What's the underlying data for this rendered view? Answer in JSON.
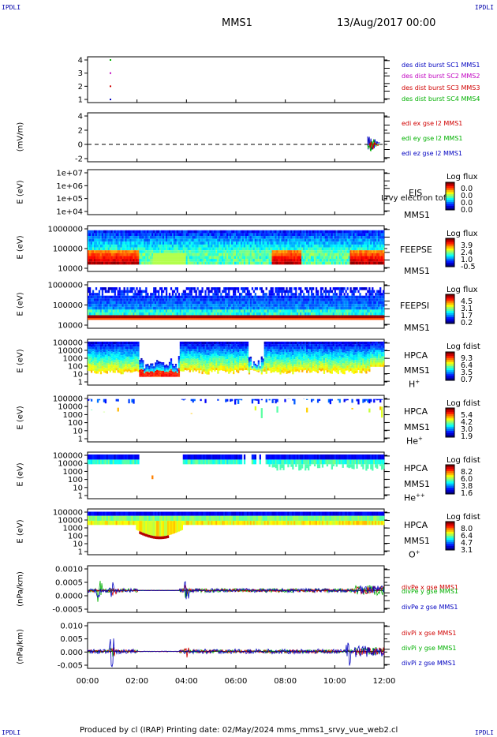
{
  "corners": {
    "tl": "IPDLI",
    "tr": "IPDLI",
    "bl": "IPDLI",
    "br": "IPDLI"
  },
  "header": {
    "mission": "MMS1",
    "date": "13/Aug/2017 00:00"
  },
  "footer": {
    "text": "Produced by cl (IRAP)   Printing date: 02/May/2024   mms_mms1_srvy_vue_web2.cl"
  },
  "chart_data": {
    "type": "line",
    "x_ticks": [
      "00:00",
      "02:00",
      "04:00",
      "06:00",
      "08:00",
      "10:00",
      "12:00"
    ],
    "xlim": [
      "00:00",
      "12:00"
    ],
    "panels": [
      {
        "id": "p1",
        "yticks": [
          "4",
          "3",
          "2",
          "1"
        ],
        "ylim": [
          0.5,
          4.5
        ],
        "ylabel": "",
        "legend": [
          {
            "name": "des dist burst SC1 MMS1",
            "color": "#0000c0"
          },
          {
            "name": "des dist burst SC2 MMS2",
            "color": "#c000c0"
          },
          {
            "name": "des dist burst SC3 MMS3",
            "color": "#d00000"
          },
          {
            "name": "des dist burst SC4 MMS4",
            "color": "#00b000"
          }
        ]
      },
      {
        "id": "p2",
        "yticks": [
          "4",
          "2",
          "0",
          "-2"
        ],
        "ylim": [
          -2.5,
          4.5
        ],
        "ylabel": "(mV/m)",
        "legend": [
          {
            "name": "edi ex gse l2 MMS1",
            "color": "#d00000"
          },
          {
            "name": "edi ey gse l2 MMS1",
            "color": "#00b000"
          },
          {
            "name": "edi ez gse l2 MMS1",
            "color": "#0000c0"
          }
        ]
      },
      {
        "id": "p3",
        "yticks": [
          "1e+07",
          "1e+06",
          "1e+05",
          "1e+04"
        ],
        "ylabel": "E (eV)",
        "instrument": [
          "EIS",
          "MMS1"
        ],
        "overlay": "Lrvy electron tof",
        "colorbar": {
          "title": "Log flux",
          "values": [
            "0.0",
            "0.0",
            "0.0",
            "0.0"
          ]
        }
      },
      {
        "id": "p4",
        "yticks": [
          "1000000",
          "100000",
          "10000"
        ],
        "ylabel": "E (eV)",
        "instrument": [
          "FEEPSE",
          "MMS1"
        ],
        "colorbar": {
          "title": "Log flux",
          "values": [
            "3.9",
            "2.4",
            "1.0",
            "-0.5"
          ]
        }
      },
      {
        "id": "p5",
        "yticks": [
          "1000000",
          "100000",
          "10000"
        ],
        "ylabel": "E (eV)",
        "instrument": [
          "FEEPSI",
          "MMS1"
        ],
        "colorbar": {
          "title": "Log flux",
          "values": [
            "4.5",
            "3.1",
            "1.7",
            "0.2"
          ]
        }
      },
      {
        "id": "p6",
        "yticks": [
          "100000",
          "10000",
          "1000",
          "100",
          "10",
          "1"
        ],
        "ylabel": "E (eV)",
        "instrument": [
          "HPCA",
          "MMS1"
        ],
        "species": "H",
        "species_sup": "+",
        "colorbar": {
          "title": "Log fdist",
          "values": [
            "9.3",
            "6.4",
            "3.5",
            "0.7"
          ]
        }
      },
      {
        "id": "p7",
        "yticks": [
          "100000",
          "10000",
          "1000",
          "100",
          "10",
          "1"
        ],
        "ylabel": "E (eV)",
        "instrument": [
          "HPCA",
          "MMS1"
        ],
        "species": "He",
        "species_sup": "+",
        "colorbar": {
          "title": "Log fdist",
          "values": [
            "5.4",
            "4.2",
            "3.0",
            "1.9"
          ]
        }
      },
      {
        "id": "p8",
        "yticks": [
          "100000",
          "10000",
          "1000",
          "100",
          "10",
          "1"
        ],
        "ylabel": "E (eV)",
        "instrument": [
          "HPCA",
          "MMS1"
        ],
        "species": "He",
        "species_sup": "++",
        "colorbar": {
          "title": "Log fdist",
          "values": [
            "8.2",
            "6.0",
            "3.8",
            "1.6"
          ]
        }
      },
      {
        "id": "p9",
        "yticks": [
          "100000",
          "10000",
          "1000",
          "100",
          "10",
          "1"
        ],
        "ylabel": "E (eV)",
        "instrument": [
          "HPCA",
          "MMS1"
        ],
        "species": "O",
        "species_sup": "+",
        "colorbar": {
          "title": "Log fdist",
          "values": [
            "8.0",
            "6.4",
            "4.7",
            "3.1"
          ]
        }
      },
      {
        "id": "p10",
        "yticks": [
          "0.0010",
          "0.0005",
          "0.0000",
          "-0.0005"
        ],
        "ylim": [
          -0.0009,
          0.0013
        ],
        "ylabel": "(nPa/km)",
        "legend": [
          {
            "name": "divPe x gse MMS1",
            "color": "#d00000"
          },
          {
            "name": "divPe y gse MMS1",
            "color": "#00b000"
          },
          {
            "name": "divPe z gse MMS1",
            "color": "#0000c0"
          }
        ]
      },
      {
        "id": "p11",
        "yticks": [
          "0.010",
          "0.005",
          "0.000",
          "-0.005"
        ],
        "ylim": [
          -0.0075,
          0.014
        ],
        "ylabel": "(nPa/km)",
        "legend": [
          {
            "name": "divPi x gse MMS1",
            "color": "#d00000"
          },
          {
            "name": "divPi y gse MMS1",
            "color": "#00b000"
          },
          {
            "name": "divPi z gse MMS1",
            "color": "#0000c0"
          }
        ]
      }
    ]
  }
}
